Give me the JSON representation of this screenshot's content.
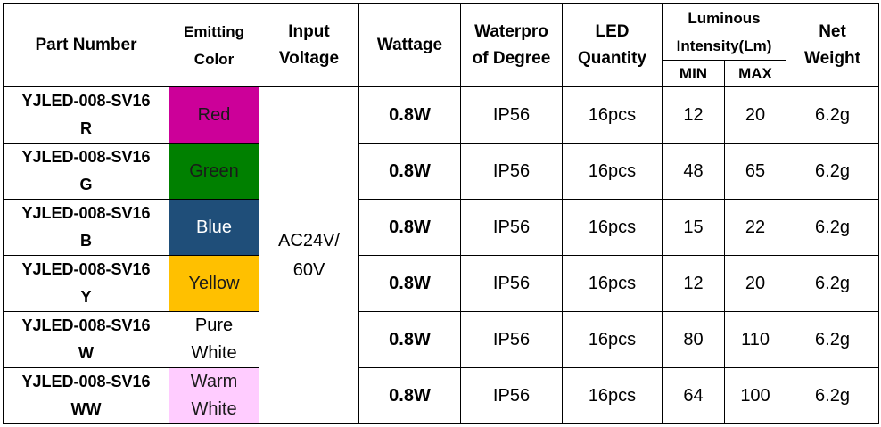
{
  "headers": {
    "part_number": "Part Number",
    "emitting_color": [
      "Emitting",
      "Color"
    ],
    "input_voltage": [
      "Input",
      "Voltage"
    ],
    "wattage": "Wattage",
    "waterproof": [
      "Waterpro",
      "of Degree"
    ],
    "led_quantity": [
      "LED",
      "Quantity"
    ],
    "luminous": [
      "Luminous",
      "Intensity(Lm)"
    ],
    "min": "MIN",
    "max": "MAX",
    "net_weight": [
      "Net",
      "Weight"
    ]
  },
  "input_voltage": [
    "AC24V/",
    "60V"
  ],
  "rows": [
    {
      "part": [
        "YJLED-008-SV16",
        "R"
      ],
      "color": [
        "Red"
      ],
      "bg": "#cc0099",
      "fg": "#1a1a1a",
      "wattage": "0.8W",
      "ip": "IP56",
      "qty": "16pcs",
      "min": "12",
      "max": "20",
      "weight": "6.2g"
    },
    {
      "part": [
        "YJLED-008-SV16",
        "G"
      ],
      "color": [
        "Green"
      ],
      "bg": "#008000",
      "fg": "#1a1a1a",
      "wattage": "0.8W",
      "ip": "IP56",
      "qty": "16pcs",
      "min": "48",
      "max": "65",
      "weight": "6.2g"
    },
    {
      "part": [
        "YJLED-008-SV16",
        "B"
      ],
      "color": [
        "Blue"
      ],
      "bg": "#1f4e79",
      "fg": "#ffffff",
      "wattage": "0.8W",
      "ip": "IP56",
      "qty": "16pcs",
      "min": "15",
      "max": "22",
      "weight": "6.2g"
    },
    {
      "part": [
        "YJLED-008-SV16",
        "Y"
      ],
      "color": [
        "Yellow"
      ],
      "bg": "#ffc000",
      "fg": "#1a1a1a",
      "wattage": "0.8W",
      "ip": "IP56",
      "qty": "16pcs",
      "min": "12",
      "max": "20",
      "weight": "6.2g"
    },
    {
      "part": [
        "YJLED-008-SV16",
        "W"
      ],
      "color": [
        "Pure",
        "White"
      ],
      "bg": "#ffffff",
      "fg": "#000000",
      "wattage": "0.8W",
      "ip": "IP56",
      "qty": "16pcs",
      "min": "80",
      "max": "110",
      "weight": "6.2g"
    },
    {
      "part": [
        "YJLED-008-SV16",
        "WW"
      ],
      "color": [
        "Warm",
        "White"
      ],
      "bg": "#ffccff",
      "fg": "#1a1a1a",
      "wattage": "0.8W",
      "ip": "IP56",
      "qty": "16pcs",
      "min": "64",
      "max": "100",
      "weight": "6.2g"
    }
  ]
}
